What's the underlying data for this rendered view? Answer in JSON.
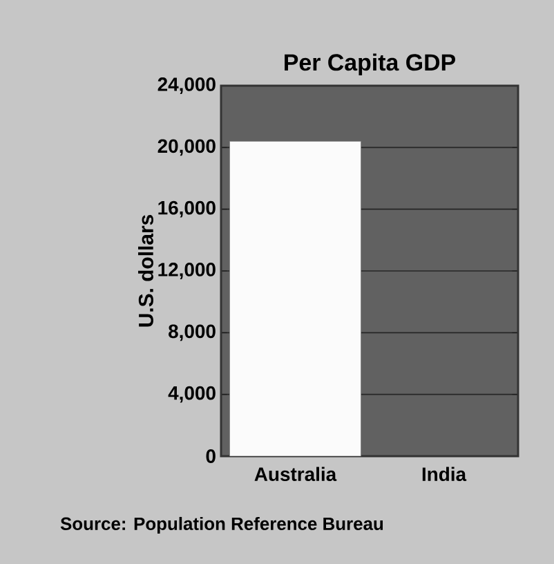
{
  "chart_data": {
    "type": "bar",
    "title": "Per Capita GDP",
    "ylabel": "U.S. dollars",
    "categories": [
      "Australia",
      "India"
    ],
    "values": [
      20400,
      null
    ],
    "color": "#fbfbfb",
    "ylim": [
      0,
      24000
    ],
    "yticks": [
      {
        "value": 0,
        "label": "0"
      },
      {
        "value": 4000,
        "label": "4,000"
      },
      {
        "value": 8000,
        "label": "8,000"
      },
      {
        "value": 12000,
        "label": "12,000"
      },
      {
        "value": 16000,
        "label": "16,000"
      },
      {
        "value": 20000,
        "label": "20,000"
      },
      {
        "value": 24000,
        "label": "24,000"
      }
    ],
    "grid": "y",
    "annotations": [
      "Source: Population Reference Bureau"
    ]
  }
}
